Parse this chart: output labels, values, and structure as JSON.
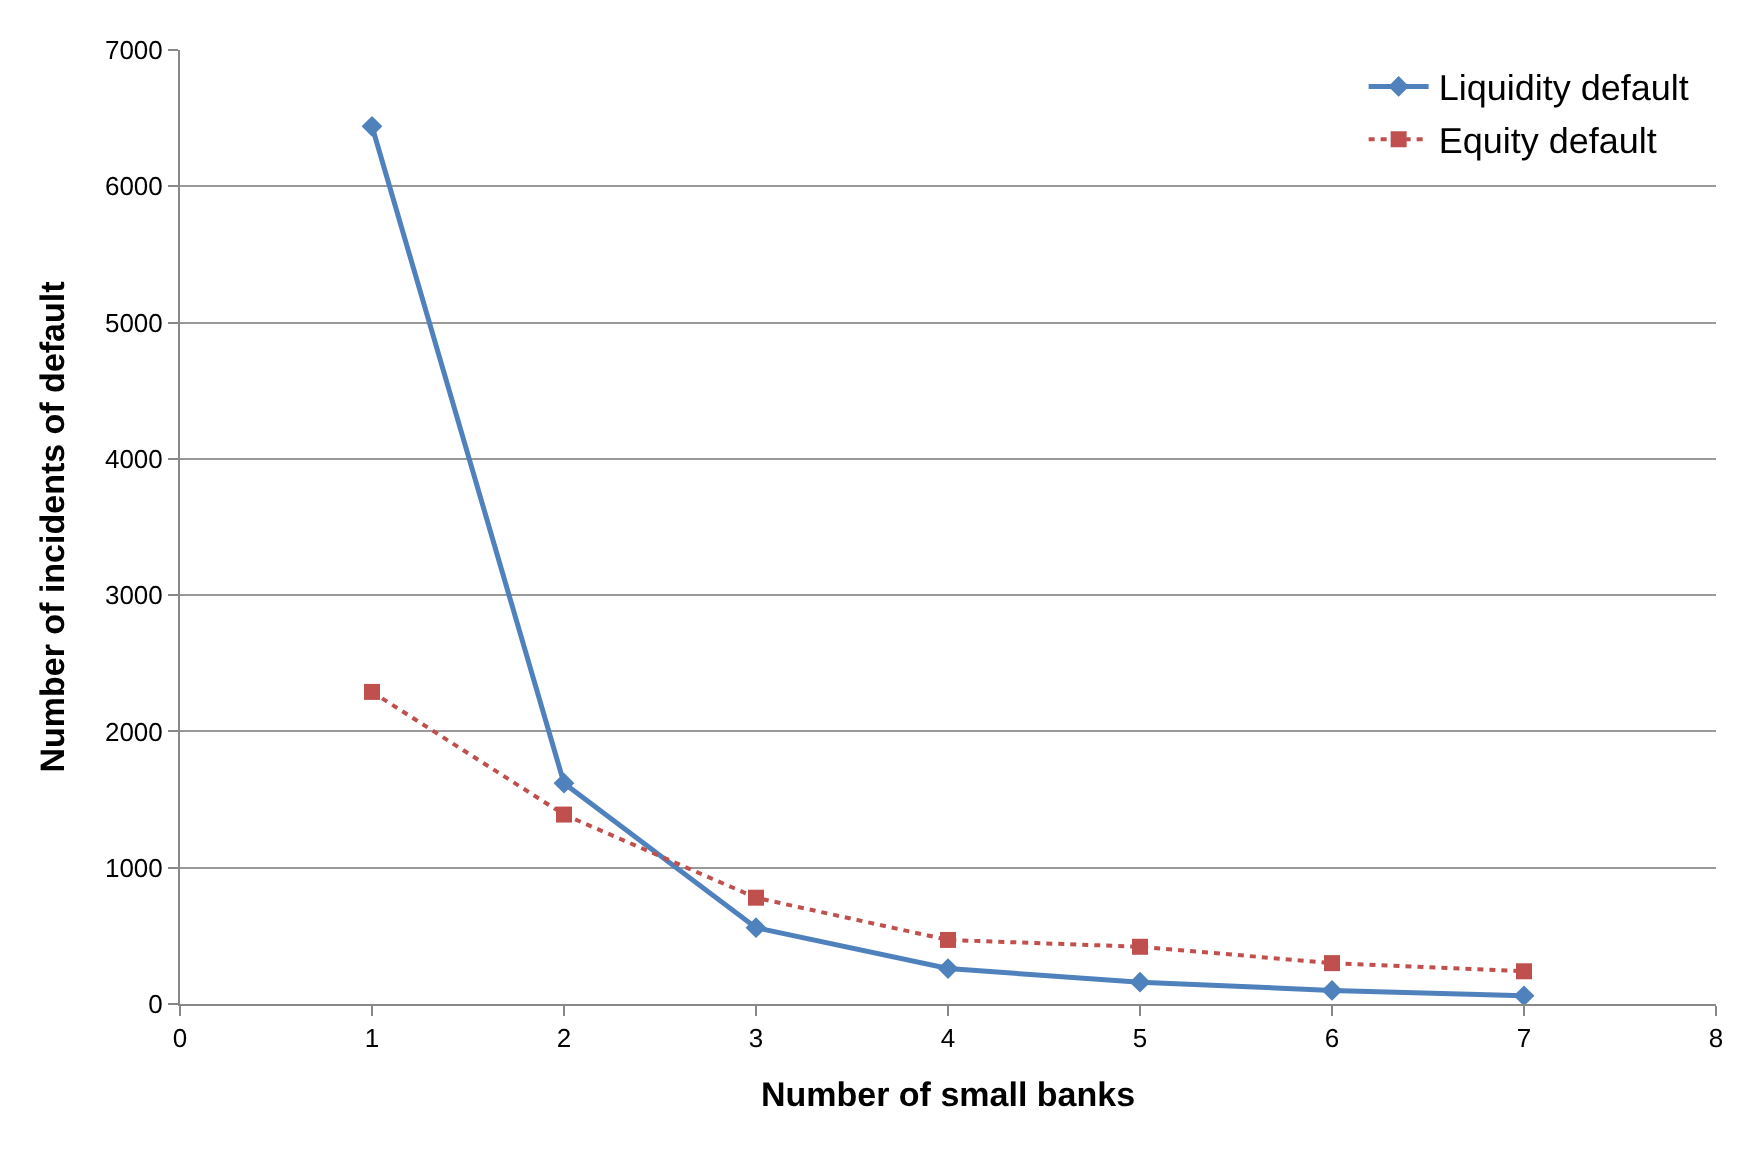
{
  "chart_data": {
    "type": "line",
    "xlabel": "Number of small banks",
    "ylabel": "Number of incidents of default",
    "x": [
      1,
      2,
      3,
      4,
      5,
      6,
      7
    ],
    "series": [
      {
        "name": "Liquidity default",
        "color": "#4f81bd",
        "values": [
          6440,
          1620,
          560,
          260,
          160,
          100,
          60
        ],
        "marker": "diamond",
        "line_style": "solid"
      },
      {
        "name": "Equity default",
        "color": "#c0504d",
        "values": [
          2290,
          1390,
          780,
          470,
          420,
          300,
          240
        ],
        "marker": "square",
        "line_style": "dotted"
      }
    ],
    "xlim": [
      0,
      8
    ],
    "xticks": [
      0,
      1,
      2,
      3,
      4,
      5,
      6,
      7,
      8
    ],
    "ylim": [
      0,
      7000
    ],
    "yticks": [
      0,
      1000,
      2000,
      3000,
      4000,
      5000,
      6000,
      7000
    ],
    "grid": "y",
    "legend": "top right"
  }
}
